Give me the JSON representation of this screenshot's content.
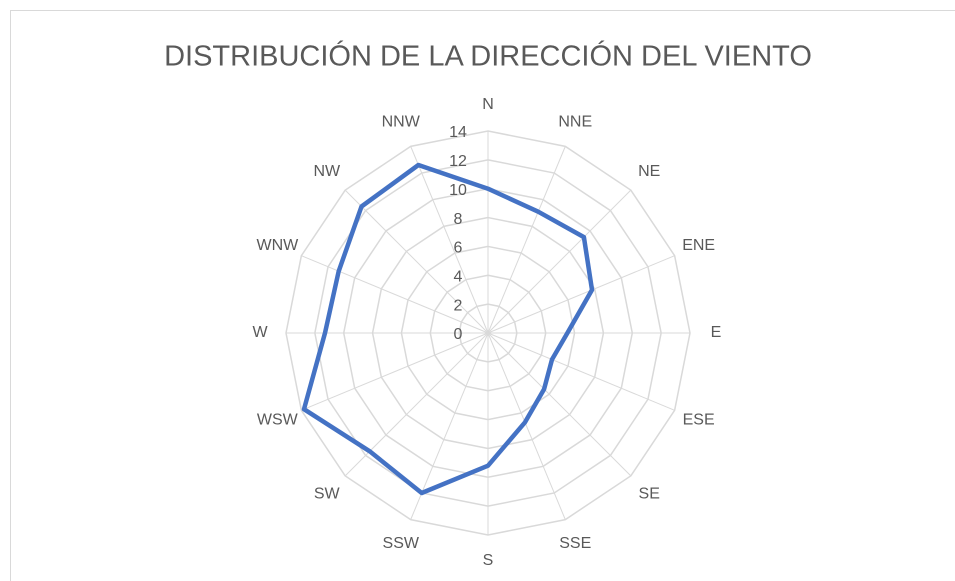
{
  "chart_data": {
    "type": "radar",
    "title": "DISTRIBUCIÓN DE LA DIRECCIÓN DEL VIENTO",
    "categories": [
      "N",
      "NNE",
      "NE",
      "ENE",
      "E",
      "ESE",
      "SE",
      "SSE",
      "S",
      "SSW",
      "SW",
      "WSW",
      "W",
      "WNW",
      "NW",
      "NNW"
    ],
    "values": [
      10,
      9.1,
      9.4,
      7.8,
      5.5,
      4.8,
      5.5,
      6.7,
      9.2,
      12,
      11.6,
      13.8,
      11.3,
      11.2,
      12.4,
      12.6
    ],
    "color": "#4472c4",
    "ylim": [
      0,
      14
    ],
    "yticks": [
      0,
      2,
      4,
      6,
      8,
      10,
      12,
      14
    ],
    "grid": true
  }
}
